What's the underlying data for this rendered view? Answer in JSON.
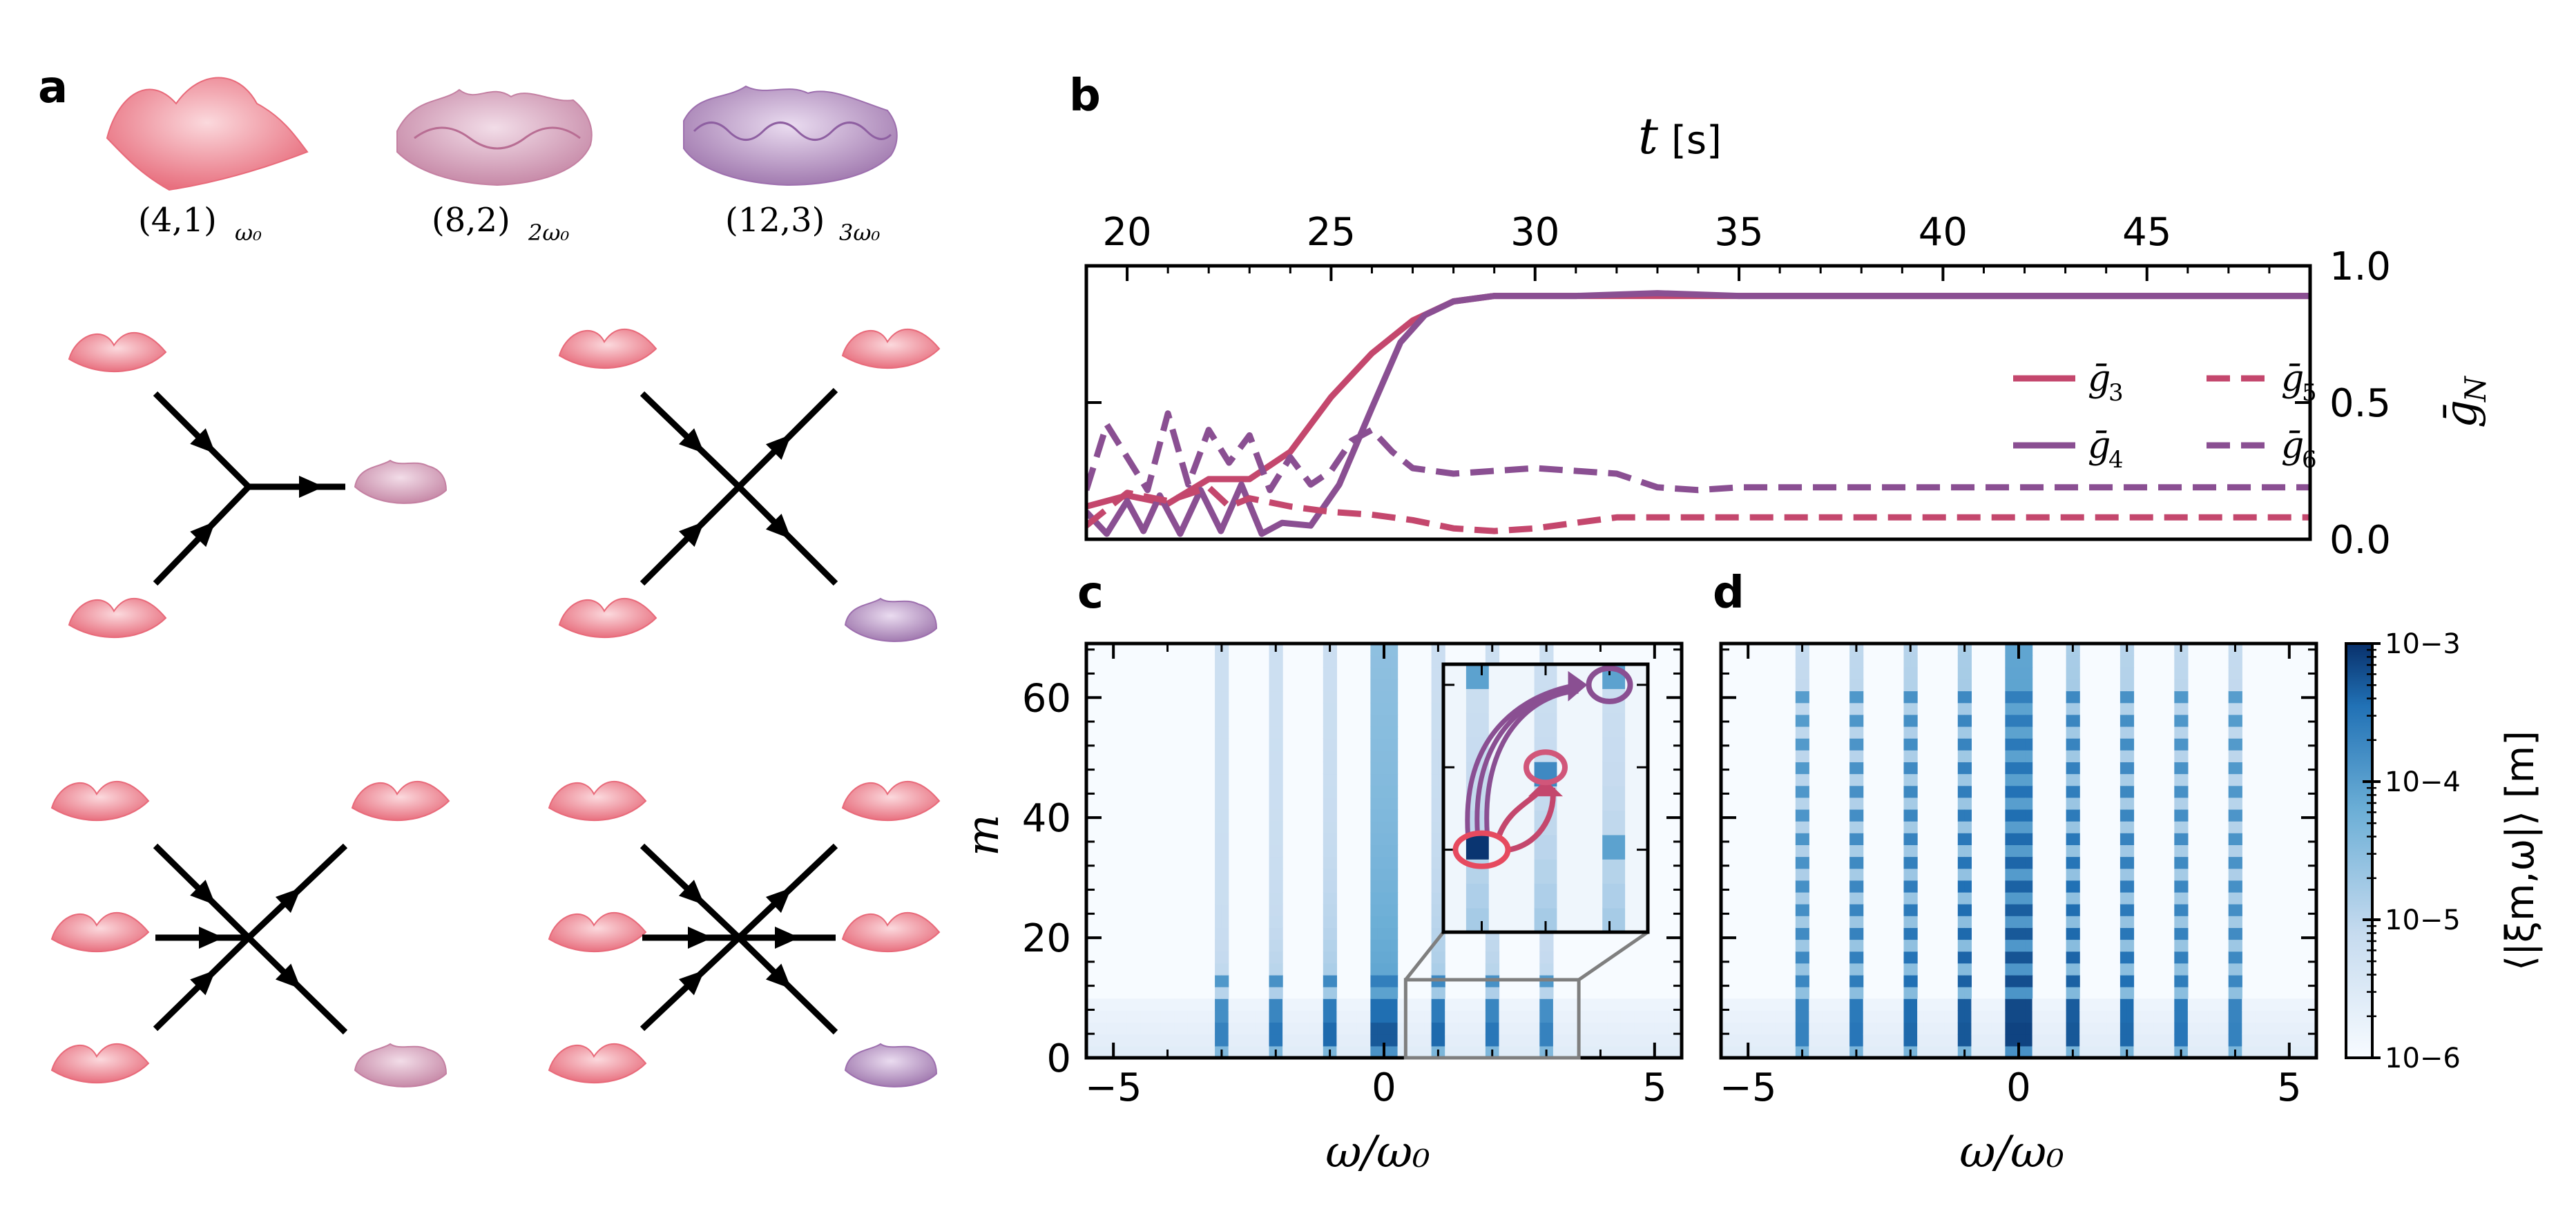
{
  "panel_labels": {
    "a": "a",
    "b": "b",
    "c": "c",
    "d": "d"
  },
  "modes": {
    "m1": "(4,1)",
    "m1_sub": "ω₀",
    "m2": "(8,2)",
    "m2_sub": "2ω₀",
    "m3": "(12,3)",
    "m3_sub": "3ω₀"
  },
  "colors": {
    "g3": "#c4476d",
    "g4": "#8a4f92",
    "g5": "#c4476d",
    "g6": "#8a4f92",
    "wave1": "#ec8a98",
    "wave2": "#cc93b1",
    "wave3": "#a97fb2",
    "heat_low": "#f7fbff",
    "heat_high": "#08306b"
  },
  "chart_data": [
    {
      "id": "b",
      "type": "line",
      "xlabel_var": "t",
      "xlabel_unit": "[s]",
      "ylabel": "ḡ",
      "ylabel_sub": "N",
      "xlim": [
        19,
        49
      ],
      "ylim": [
        0.0,
        1.0
      ],
      "xticks": [
        20,
        25,
        30,
        35,
        40,
        45
      ],
      "xtick_labels": [
        "20",
        "25",
        "30",
        "35",
        "40",
        "45"
      ],
      "yticks": [
        0.0,
        0.5,
        1.0
      ],
      "ytick_labels": [
        "0.0",
        "0.5",
        "1.0"
      ],
      "legend_position": "center-right",
      "series": [
        {
          "name": "ḡ",
          "sub": "3",
          "style": "solid",
          "color_key": "g3",
          "points": [
            [
              19,
              0.12
            ],
            [
              20,
              0.16
            ],
            [
              21,
              0.13
            ],
            [
              22,
              0.22
            ],
            [
              23,
              0.22
            ],
            [
              24,
              0.32
            ],
            [
              25,
              0.52
            ],
            [
              26,
              0.68
            ],
            [
              27,
              0.8
            ],
            [
              28,
              0.87
            ],
            [
              29,
              0.89
            ],
            [
              30,
              0.89
            ],
            [
              32,
              0.89
            ],
            [
              35,
              0.89
            ],
            [
              40,
              0.89
            ],
            [
              49,
              0.89
            ]
          ]
        },
        {
          "name": "ḡ",
          "sub": "4",
          "style": "solid",
          "color_key": "g4",
          "points": [
            [
              19,
              0.1
            ],
            [
              19.5,
              0.02
            ],
            [
              20,
              0.14
            ],
            [
              20.4,
              0.03
            ],
            [
              20.8,
              0.16
            ],
            [
              21.3,
              0.02
            ],
            [
              21.8,
              0.18
            ],
            [
              22.3,
              0.03
            ],
            [
              22.8,
              0.2
            ],
            [
              23.3,
              0.02
            ],
            [
              23.8,
              0.06
            ],
            [
              24.5,
              0.05
            ],
            [
              25.2,
              0.2
            ],
            [
              26,
              0.48
            ],
            [
              26.7,
              0.72
            ],
            [
              27.3,
              0.82
            ],
            [
              28,
              0.87
            ],
            [
              29,
              0.89
            ],
            [
              31,
              0.89
            ],
            [
              33,
              0.9
            ],
            [
              35,
              0.89
            ],
            [
              40,
              0.89
            ],
            [
              49,
              0.89
            ]
          ]
        },
        {
          "name": "ḡ",
          "sub": "5",
          "style": "dashed",
          "color_key": "g5",
          "points": [
            [
              19,
              0.05
            ],
            [
              20,
              0.17
            ],
            [
              21,
              0.14
            ],
            [
              22,
              0.19
            ],
            [
              22.5,
              0.12
            ],
            [
              23,
              0.15
            ],
            [
              24,
              0.12
            ],
            [
              25,
              0.1
            ],
            [
              26,
              0.09
            ],
            [
              27,
              0.07
            ],
            [
              28,
              0.04
            ],
            [
              29,
              0.03
            ],
            [
              30,
              0.04
            ],
            [
              31,
              0.06
            ],
            [
              32,
              0.08
            ],
            [
              35,
              0.08
            ],
            [
              40,
              0.08
            ],
            [
              49,
              0.08
            ]
          ]
        },
        {
          "name": "ḡ",
          "sub": "6",
          "style": "dashed",
          "color_key": "g6",
          "points": [
            [
              19,
              0.18
            ],
            [
              19.5,
              0.42
            ],
            [
              20,
              0.3
            ],
            [
              20.5,
              0.18
            ],
            [
              21,
              0.46
            ],
            [
              21.5,
              0.2
            ],
            [
              22,
              0.4
            ],
            [
              22.5,
              0.28
            ],
            [
              23,
              0.38
            ],
            [
              23.5,
              0.18
            ],
            [
              24,
              0.3
            ],
            [
              24.5,
              0.2
            ],
            [
              25,
              0.25
            ],
            [
              25.5,
              0.36
            ],
            [
              26,
              0.4
            ],
            [
              26.5,
              0.32
            ],
            [
              27,
              0.26
            ],
            [
              28,
              0.24
            ],
            [
              30,
              0.26
            ],
            [
              32,
              0.24
            ],
            [
              33,
              0.19
            ],
            [
              34,
              0.18
            ],
            [
              35,
              0.19
            ],
            [
              40,
              0.19
            ],
            [
              49,
              0.19
            ]
          ]
        }
      ]
    },
    {
      "id": "c",
      "type": "heatmap",
      "xlabel": "ω/ω₀",
      "ylabel": "m",
      "xlim": [
        -5.5,
        5.5
      ],
      "ylim": [
        0,
        69
      ],
      "xticks": [
        -5,
        0,
        5
      ],
      "xtick_labels": [
        "−5",
        "0",
        "5"
      ],
      "yticks": [
        0,
        20,
        40,
        60
      ],
      "ytick_labels": [
        "0",
        "20",
        "40",
        "60"
      ],
      "color_scale": "log",
      "vmin": 1e-06,
      "vmax": 0.001,
      "peak_columns_omega": [
        -3,
        -2,
        -1,
        0,
        1,
        2,
        3
      ],
      "peak_rows_m": [
        4,
        8,
        12
      ],
      "inset": {
        "omega_range": [
          0.4,
          3.6
        ],
        "m_range": [
          0,
          13
        ],
        "highlight_modes": [
          [
            1,
            4
          ],
          [
            2,
            8
          ],
          [
            3,
            12
          ]
        ]
      }
    },
    {
      "id": "d",
      "type": "heatmap",
      "xlabel": "ω/ω₀",
      "xlim": [
        -5.5,
        5.5
      ],
      "ylim": [
        0,
        69
      ],
      "xticks": [
        -5,
        0,
        5
      ],
      "xtick_labels": [
        "−5",
        "0",
        "5"
      ],
      "color_scale": "log",
      "vmin": 1e-06,
      "vmax": 0.001,
      "peak_columns_omega": [
        -4,
        -3,
        -2,
        -1,
        0,
        1,
        2,
        3,
        4
      ],
      "peak_rows_m": [
        4,
        8,
        12,
        16,
        20,
        24,
        28,
        32,
        36,
        40,
        44,
        48,
        52,
        56,
        60
      ]
    }
  ],
  "colorbar": {
    "label": "⟨|ξm,ω|⟩ [m]",
    "tick_labels": [
      "10−3",
      "10−4",
      "10−5",
      "10−6"
    ],
    "tick_values": [
      0.001,
      0.0001,
      1e-05,
      1e-06
    ]
  }
}
